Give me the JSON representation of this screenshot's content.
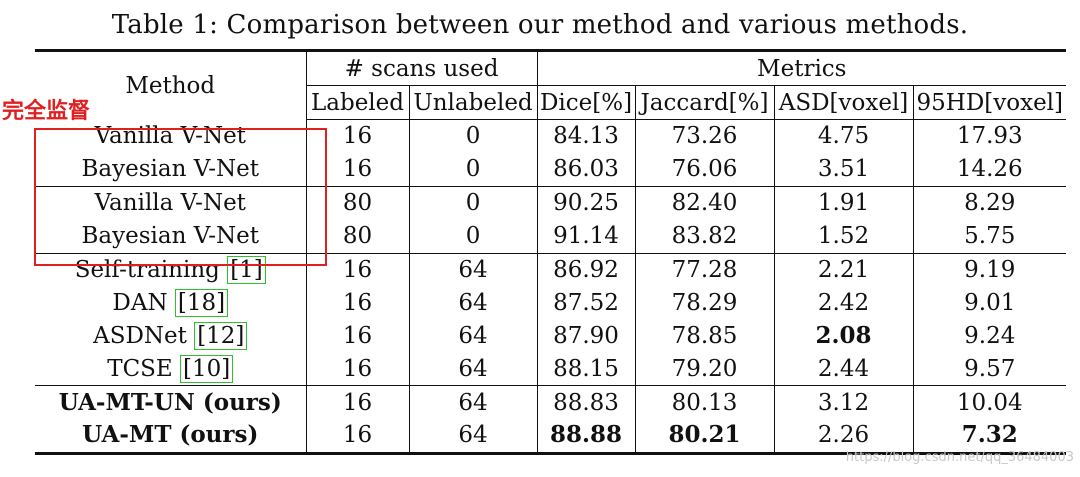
{
  "caption": "Table 1: Comparison between our method and various methods.",
  "header": {
    "method": "Method",
    "scans_group": "# scans used",
    "metrics_group": "Metrics",
    "labeled": "Labeled",
    "unlabeled": "Unlabeled",
    "dice": "Dice[%]",
    "jaccard": "Jaccard[%]",
    "asd": "ASD[voxel]",
    "hd95": "95HD[voxel]"
  },
  "rows": [
    {
      "method": "Vanilla V-Net",
      "cite": "",
      "labeled": "16",
      "unlabeled": "0",
      "dice": "84.13",
      "jaccard": "73.26",
      "asd": "4.75",
      "hd95": "17.93"
    },
    {
      "method": "Bayesian V-Net",
      "cite": "",
      "labeled": "16",
      "unlabeled": "0",
      "dice": "86.03",
      "jaccard": "76.06",
      "asd": "3.51",
      "hd95": "14.26"
    },
    {
      "method": "Vanilla V-Net",
      "cite": "",
      "labeled": "80",
      "unlabeled": "0",
      "dice": "90.25",
      "jaccard": "82.40",
      "asd": "1.91",
      "hd95": "8.29"
    },
    {
      "method": "Bayesian V-Net",
      "cite": "",
      "labeled": "80",
      "unlabeled": "0",
      "dice": "91.14",
      "jaccard": "83.82",
      "asd": "1.52",
      "hd95": "5.75"
    },
    {
      "method": "Self-training",
      "cite": "1",
      "labeled": "16",
      "unlabeled": "64",
      "dice": "86.92",
      "jaccard": "77.28",
      "asd": "2.21",
      "hd95": "9.19"
    },
    {
      "method": "DAN",
      "cite": "18",
      "labeled": "16",
      "unlabeled": "64",
      "dice": "87.52",
      "jaccard": "78.29",
      "asd": "2.42",
      "hd95": "9.01"
    },
    {
      "method": "ASDNet",
      "cite": "12",
      "labeled": "16",
      "unlabeled": "64",
      "dice": "87.90",
      "jaccard": "78.85",
      "asd": "2.08",
      "hd95": "9.24"
    },
    {
      "method": "TCSE",
      "cite": "10",
      "labeled": "16",
      "unlabeled": "64",
      "dice": "88.15",
      "jaccard": "79.20",
      "asd": "2.44",
      "hd95": "9.57"
    },
    {
      "method": "UA-MT-UN (ours)",
      "cite": "",
      "labeled": "16",
      "unlabeled": "64",
      "dice": "88.83",
      "jaccard": "80.13",
      "asd": "3.12",
      "hd95": "10.04"
    },
    {
      "method": "UA-MT (ours)",
      "cite": "",
      "labeled": "16",
      "unlabeled": "64",
      "dice": "88.88",
      "jaccard": "80.21",
      "asd": "2.26",
      "hd95": "7.32"
    }
  ],
  "annotation": {
    "label": "完全监督",
    "color": "#e02020"
  },
  "watermark": "https://blog.csdn.net/qq_36484003"
}
